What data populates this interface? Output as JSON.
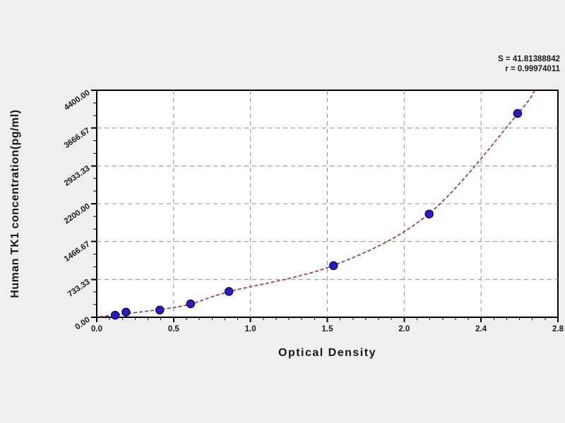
{
  "chart_data": {
    "type": "scatter",
    "title": "",
    "xlabel": "Optical Density",
    "ylabel": "Human TK1 concentration(pg/ml)",
    "x_ticks": {
      "labels": [
        "0.0",
        "0.5",
        "1.0",
        "1.5",
        "2.0",
        "2.4",
        "2.8"
      ],
      "values": [
        0.0,
        0.5,
        1.0,
        1.5,
        2.0,
        2.4,
        2.8
      ]
    },
    "y_ticks": {
      "labels": [
        "0.00",
        "733.33",
        "1466.67",
        "2200.00",
        "2933.33",
        "3666.67",
        "4400.00"
      ],
      "values": [
        0,
        733.33,
        1466.67,
        2200.0,
        2933.33,
        3666.67,
        4400.0
      ]
    },
    "ylim": [
      0,
      4400
    ],
    "grid": "dashed",
    "legend": "none",
    "annotations": [
      "S = 41.81388842",
      "r = 0.99974011"
    ],
    "series": [
      {
        "name": "standard-points",
        "type": "scatter",
        "color": "#2a1cc0",
        "edge_color": "#140b66",
        "points": [
          {
            "od": 0.12,
            "conc": 40
          },
          {
            "od": 0.19,
            "conc": 100
          },
          {
            "od": 0.41,
            "conc": 140
          },
          {
            "od": 0.61,
            "conc": 260
          },
          {
            "od": 0.86,
            "conc": 500
          },
          {
            "od": 1.54,
            "conc": 1000
          },
          {
            "od": 2.13,
            "conc": 2000
          },
          {
            "od": 2.59,
            "conc": 3950
          }
        ]
      },
      {
        "name": "fitted-curve",
        "type": "line",
        "color": "#9b3c3c",
        "points": [
          {
            "od": 0.02,
            "conc": 10
          },
          {
            "od": 0.12,
            "conc": 45
          },
          {
            "od": 0.41,
            "conc": 150
          },
          {
            "od": 0.61,
            "conc": 255
          },
          {
            "od": 0.86,
            "conc": 495
          },
          {
            "od": 1.54,
            "conc": 1005
          },
          {
            "od": 2.13,
            "conc": 2010
          },
          {
            "od": 2.59,
            "conc": 3940
          },
          {
            "od": 2.68,
            "conc": 4400
          }
        ]
      }
    ],
    "colors": {
      "page_bg": "#efefed",
      "plot_bg": "#ffffff",
      "axis": "#000000",
      "grid": "#8f8f8f",
      "text": "#1a1a1a"
    }
  }
}
